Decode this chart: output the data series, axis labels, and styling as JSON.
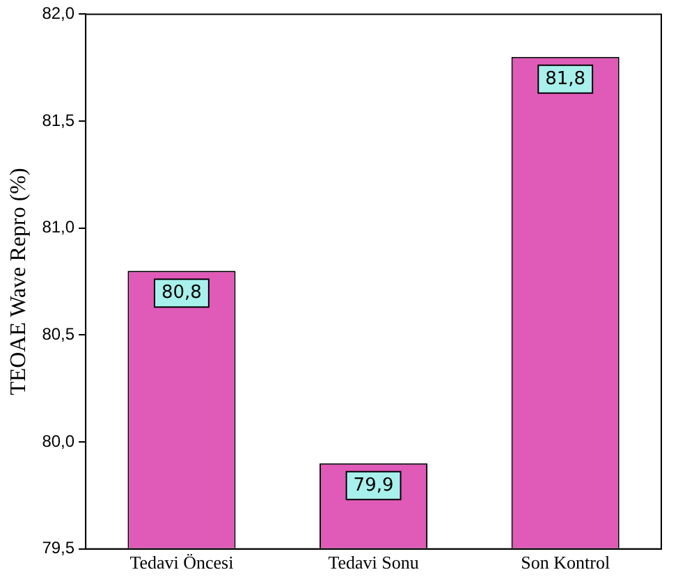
{
  "chart_data": {
    "type": "bar",
    "ylabel": "TEOAE Wave Repro (%)",
    "categories": [
      "Tedavi Öncesi",
      "Tedavi Sonu",
      "Son Kontrol"
    ],
    "values": [
      80.8,
      79.9,
      81.8
    ],
    "value_labels": [
      "80,8",
      "79,9",
      "81,8"
    ],
    "color": "#e05ab8",
    "ylim": [
      79.5,
      82.0
    ],
    "yticks": [
      {
        "value": 79.5,
        "label": "79,5"
      },
      {
        "value": 80.0,
        "label": "80,0"
      },
      {
        "value": 80.5,
        "label": "80,5"
      },
      {
        "value": 81.0,
        "label": "81,0"
      },
      {
        "value": 81.5,
        "label": "81,5"
      },
      {
        "value": 82.0,
        "label": "82,0"
      }
    ],
    "grid": false,
    "legend": false
  }
}
